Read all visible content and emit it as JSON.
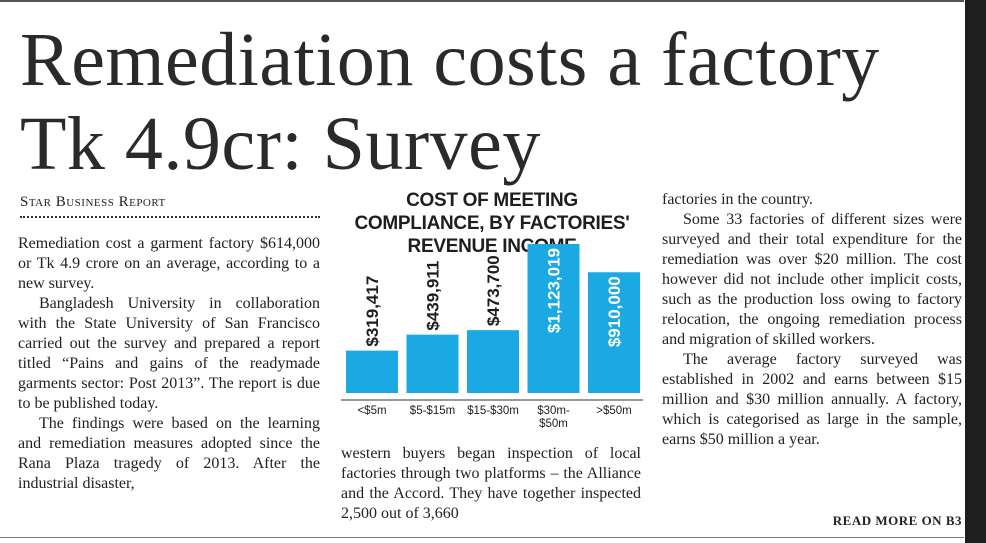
{
  "headline": "Remediation costs a factory Tk 4.9cr: Survey",
  "byline": "Star Business Report",
  "column1": [
    "Remediation cost a garment factory $614,000 or Tk 4.9 crore on an average, according to a new survey.",
    "Bangladesh University in collaboration with the State University of San Francisco carried out the survey and prepared a report titled “Pains and gains of the readymade garments sector: Post 2013”. The report is due to be published today.",
    "The findings were based on the learning and remediation measures adopted since the Rana Plaza tragedy of 2013. After the industrial disaster,"
  ],
  "column2": [
    "western buyers began inspection of local factories through two platforms – the Alliance and the Accord. They have together inspected 2,500 out of 3,660"
  ],
  "column3": [
    "factories in the country.",
    "Some 33 factories of different sizes were surveyed and their total expenditure for the remediation was over $20 million. The cost however did not include other implicit costs, such as the production loss owing to factory relocation, the ongoing remediation process and migration of skilled workers.",
    "The average factory surveyed was established in 2002 and earns between $15 million and $30 million annually. A factory, which is categorised as large in the sample, earns $50 million a year."
  ],
  "read_more": "READ MORE ON B3",
  "colors": {
    "bar": "#1aa9e3",
    "text": "#1e1e1e"
  },
  "chart_data": {
    "type": "bar",
    "title": "COST OF MEETING COMPLIANCE, BY FACTORIES' REVENUE INCOME",
    "categories": [
      "<$5m",
      "$5-$15m",
      "$15-$30m",
      "$30m-$50m",
      ">$50m"
    ],
    "category_lines": [
      [
        "<$5m"
      ],
      [
        "$5-$15m"
      ],
      [
        "$15-$30m"
      ],
      [
        "$30m-",
        "$50m"
      ],
      [
        ">$50m"
      ]
    ],
    "values": [
      319417,
      439911,
      473700,
      1123019,
      910000
    ],
    "labels": [
      "$319,417",
      "$439,911",
      "$473,700",
      "$1,123,019",
      "$910,000"
    ],
    "ylim": [
      0,
      1123019
    ],
    "xlabel": "",
    "ylabel": ""
  }
}
